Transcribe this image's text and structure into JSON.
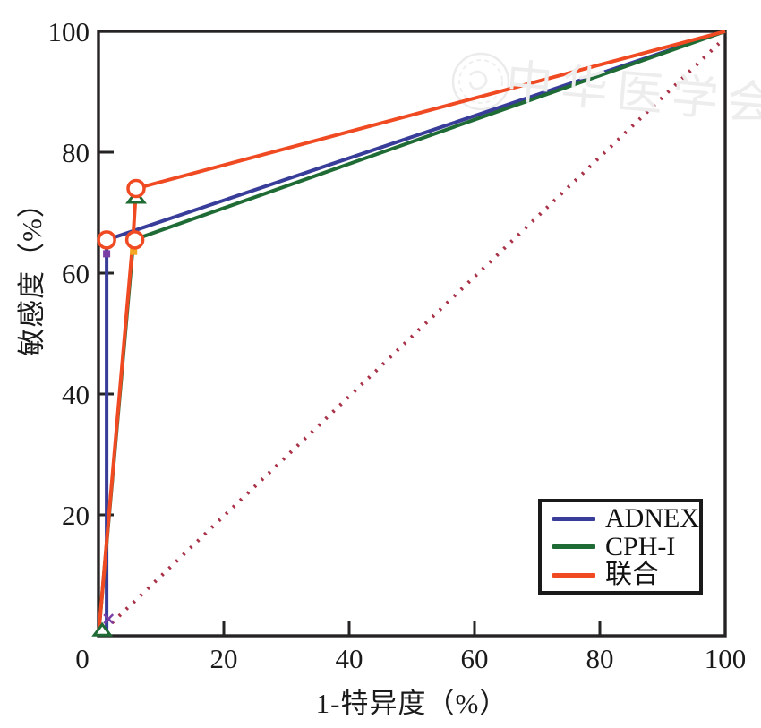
{
  "figure": {
    "background": "#ffffff",
    "axis_color": "#262324",
    "text_color": "#1a1a1a"
  },
  "chart_data": {
    "type": "line",
    "title": "",
    "xlabel": "1-特异度（%）",
    "ylabel": "敏感度（%）",
    "xlim": [
      0,
      100
    ],
    "ylim": [
      0,
      100
    ],
    "x_ticks": [
      0,
      20,
      40,
      60,
      80,
      100
    ],
    "y_ticks": [
      20,
      40,
      60,
      80,
      100
    ],
    "grid": false,
    "legend_position": "lower right",
    "series": [
      {
        "name": "ADNEX",
        "color": "#383d99",
        "style": "solid",
        "points": [
          [
            1.3,
            0
          ],
          [
            1.3,
            65.5
          ],
          [
            100,
            100
          ]
        ]
      },
      {
        "name": "CPH-I",
        "color": "#1f6b35",
        "style": "solid",
        "points": [
          [
            0,
            0
          ],
          [
            5.6,
            65.5
          ],
          [
            100,
            100
          ]
        ]
      },
      {
        "name": "联合",
        "color": "#f04a22",
        "style": "solid",
        "points": [
          [
            0,
            0
          ],
          [
            5.5,
            65.5
          ],
          [
            6,
            74
          ],
          [
            100,
            100
          ]
        ]
      }
    ],
    "reference_line": {
      "name": "chance-diagonal",
      "color": "#a83248",
      "style": "dotted",
      "points": [
        [
          1,
          1
        ],
        [
          99,
          98
        ]
      ]
    },
    "markers": {
      "cutoff_circles": {
        "stroke": "#f04a22",
        "fill": "#ffffff",
        "points": [
          [
            1.3,
            65.5
          ],
          [
            5.8,
            65.5
          ],
          [
            6,
            74
          ]
        ]
      },
      "triangles": {
        "stroke": "#1f6b35",
        "fill": "#ffffff",
        "points": [
          [
            6,
            72.6
          ],
          [
            0.6,
            1.0
          ]
        ]
      },
      "extra_marks": [
        {
          "type": "square",
          "color": "#7a3fa5",
          "point": [
            1.3,
            63.2
          ]
        },
        {
          "type": "square",
          "color": "#f5a623",
          "point": [
            5.6,
            63.6
          ]
        },
        {
          "type": "cross",
          "color": "#7a3fa5",
          "point": [
            1.6,
            2.8
          ]
        }
      ]
    }
  },
  "watermark": {
    "text": "中华医学会",
    "seal": "cma-seal-logo"
  }
}
